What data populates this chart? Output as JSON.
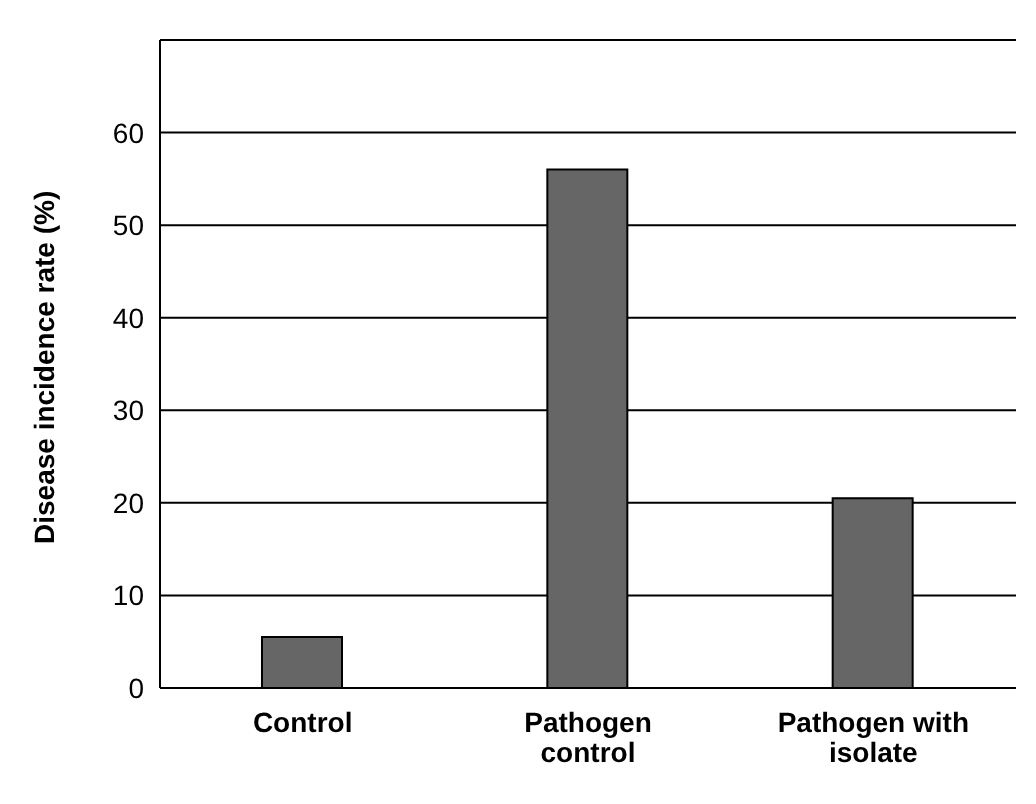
{
  "chart_data": {
    "type": "bar",
    "ylabel": "Disease incidence rate (%)",
    "categories": [
      "Control",
      "Pathogen control",
      "Pathogen with isolate"
    ],
    "values": [
      5.5,
      56,
      20.5
    ],
    "color": "#666666",
    "ylim": [
      0,
      70
    ],
    "yticks": [
      0,
      10,
      20,
      30,
      40,
      50,
      60,
      {
        "value": 70,
        "label": null
      }
    ],
    "grid": "y"
  }
}
